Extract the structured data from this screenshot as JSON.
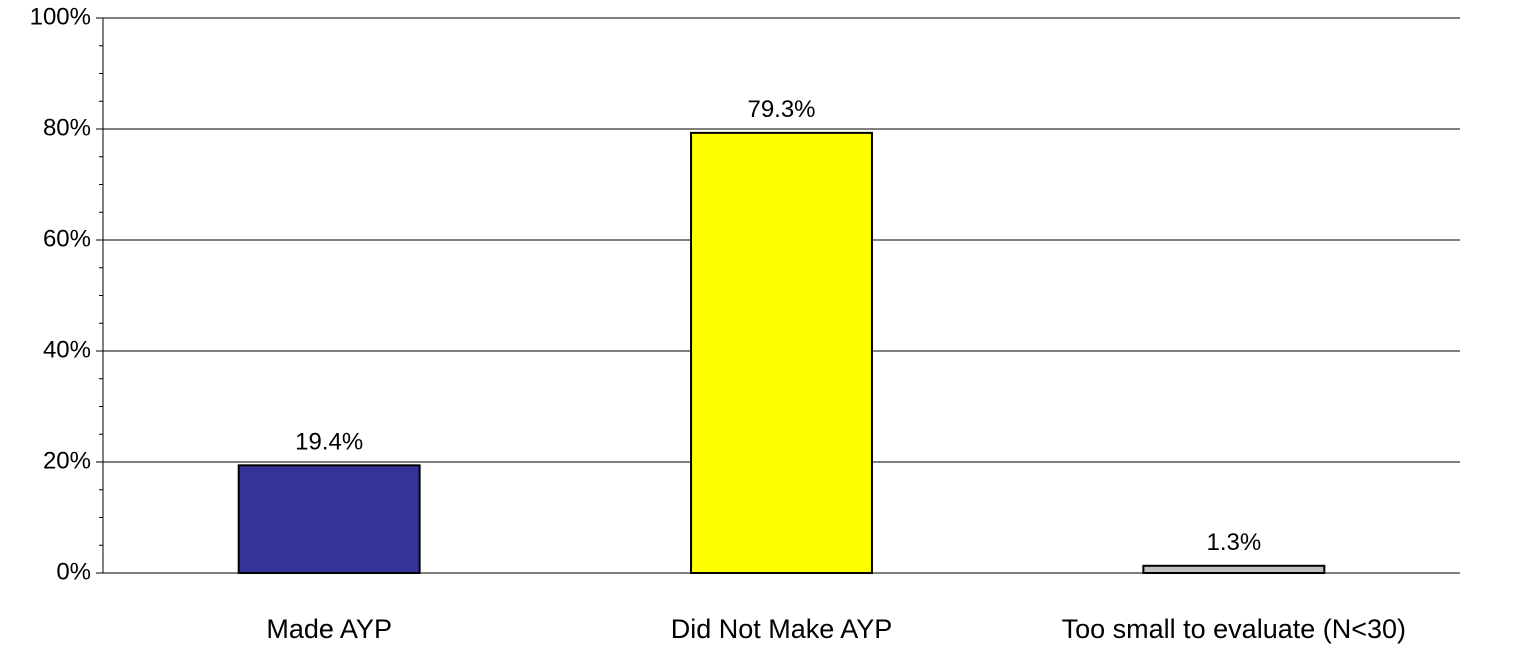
{
  "chart_data": {
    "type": "bar",
    "categories": [
      "Made AYP",
      "Did Not Make AYP",
      "Too small to evaluate (N<30)"
    ],
    "values": [
      19.4,
      79.3,
      1.3
    ],
    "value_labels": [
      "19.4%",
      "79.3%",
      "1.3%"
    ],
    "colors": [
      "#333399",
      "#ffff00",
      "#c0c0c0"
    ],
    "ylim": [
      0,
      100
    ],
    "yticks": [
      {
        "value": 0,
        "label": "0%"
      },
      {
        "value": 20,
        "label": "20%"
      },
      {
        "value": 40,
        "label": "40%"
      },
      {
        "value": 60,
        "label": "60%"
      },
      {
        "value": 80,
        "label": "80%"
      },
      {
        "value": 100,
        "label": "100%"
      }
    ],
    "minor_yticks": [
      5,
      10,
      15,
      25,
      30,
      35,
      45,
      50,
      55,
      65,
      70,
      75,
      85,
      90,
      95
    ],
    "grid": true
  }
}
